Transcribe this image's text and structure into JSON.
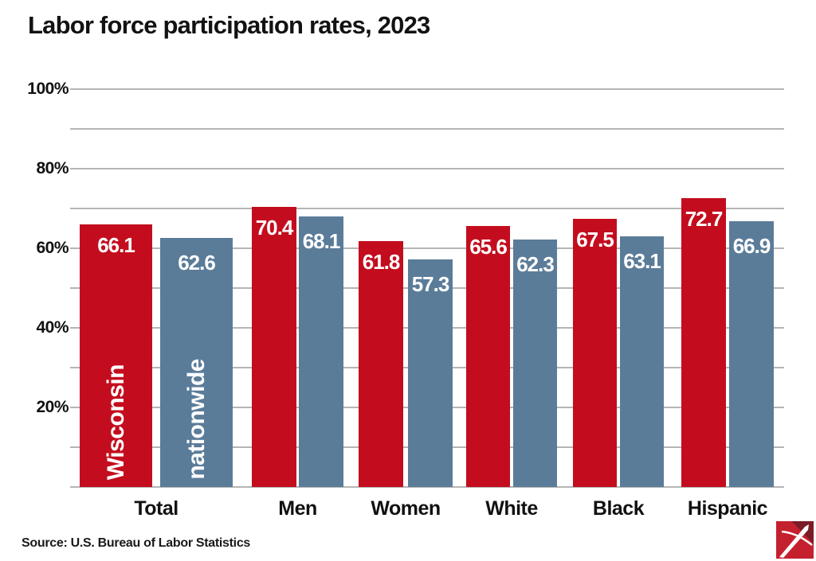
{
  "title": "Labor force participation rates, 2023",
  "source": "Source: U.S. Bureau of Labor Statistics",
  "logo": {
    "name": "wisconsin-examiner-logo",
    "bg": "#c5202e",
    "shadow": "#7a1b26",
    "pen": "#ffffff"
  },
  "colors": {
    "wisconsin_red": "#c30d1e",
    "nationwide_blue": "#5b7c99",
    "gridline": "#b5b5b5",
    "text": "#111111",
    "bar_label": "#ffffff"
  },
  "chart_data": {
    "type": "bar",
    "title": "Labor force participation rates, 2023",
    "categories": [
      "Total",
      "Men",
      "Women",
      "White",
      "Black",
      "Hispanic"
    ],
    "series": [
      {
        "name": "Wisconsin",
        "color": "#c30d1e",
        "values": [
          66.1,
          70.4,
          61.8,
          65.6,
          67.5,
          72.7
        ]
      },
      {
        "name": "nationwide",
        "color": "#5b7c99",
        "values": [
          62.6,
          68.1,
          57.3,
          62.3,
          63.1,
          66.9
        ]
      }
    ],
    "ylim": [
      0,
      100
    ],
    "ytick_step": 10,
    "ylabeled_ticks": [
      100,
      80,
      60,
      40,
      20
    ],
    "ytick_labels": [
      "100%",
      "80%",
      "60%",
      "40%",
      "20%"
    ],
    "ytick_suffix": "%",
    "grid": true,
    "legend": "rotated-labels-inside-first-group-bars",
    "value_labels": "one-decimal-inside-bar-top"
  }
}
